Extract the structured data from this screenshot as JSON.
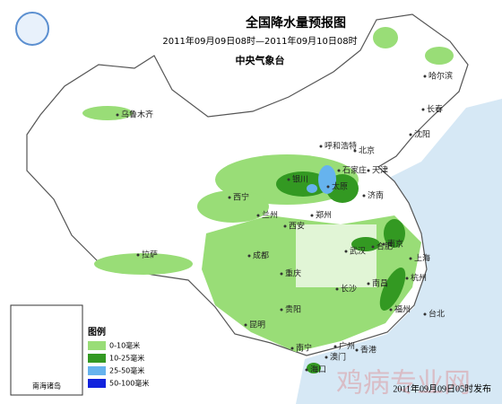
{
  "header": {
    "title": "全国降水量预报图",
    "period": "2011年09月09日08时—2011年09月10日08时",
    "agency": "中央气象台"
  },
  "cities": [
    "乌鲁木齐",
    "哈尔滨",
    "长春",
    "沈阳",
    "呼和浩特",
    "北京",
    "天津",
    "石家庄",
    "太原",
    "银川",
    "济南",
    "西宁",
    "兰州",
    "郑州",
    "西安",
    "合肥",
    "南京",
    "上海",
    "武汉",
    "杭州",
    "成都",
    "重庆",
    "拉萨",
    "长沙",
    "南昌",
    "福州",
    "贵阳",
    "昆明",
    "台北",
    "南宁",
    "广州",
    "香港",
    "澳门",
    "海口"
  ],
  "inset": {
    "label": "南海诸岛"
  },
  "legend": {
    "title": "图例",
    "items": [
      {
        "label": "0-10毫米",
        "color": "#99dd77"
      },
      {
        "label": "10-25毫米",
        "color": "#339922"
      },
      {
        "label": "25-50毫米",
        "color": "#66b3ee"
      },
      {
        "label": "50-100毫米",
        "color": "#1122dd"
      }
    ]
  },
  "footer": {
    "issued": "2011年09月09日05时发布",
    "watermark": "鸡病专业网"
  }
}
